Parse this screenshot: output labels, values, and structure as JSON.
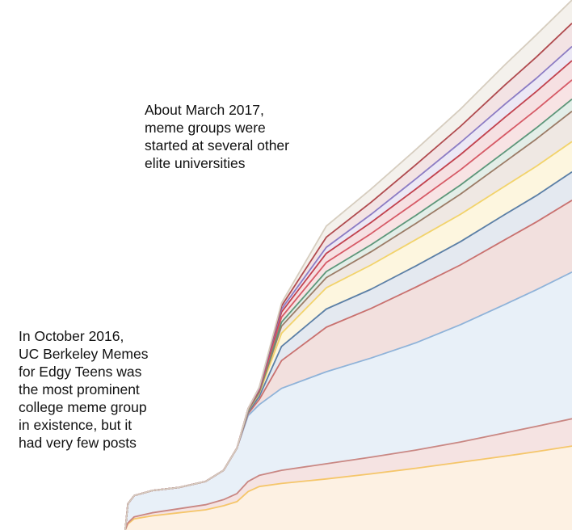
{
  "chart_data": {
    "type": "area",
    "stacked": true,
    "title": "",
    "xlabel": "",
    "ylabel": "",
    "axes_visible": false,
    "grid": false,
    "legend": "none",
    "x": [
      0,
      0.006,
      0.02,
      0.06,
      0.12,
      0.18,
      0.22,
      0.25,
      0.275,
      0.3,
      0.35,
      0.45,
      0.55,
      0.65,
      0.75,
      0.85,
      0.92,
      1.0
    ],
    "series": [
      {
        "color": "#f5c66a",
        "fill": "#fdf1e3",
        "values": [
          0,
          12,
          22,
          28,
          34,
          40,
          48,
          56,
          76,
          86,
          92,
          101,
          111,
          122,
          134,
          146,
          155,
          166
        ]
      },
      {
        "color": "#c98783",
        "fill": "#f5e3e2",
        "values": [
          0,
          2,
          4,
          6,
          8,
          10,
          12,
          16,
          20,
          22,
          26,
          30,
          33,
          36,
          40,
          46,
          50,
          54
        ]
      },
      {
        "color": "#8fb3d9",
        "fill": "#e8f0f8",
        "values": [
          0,
          38,
          42,
          44,
          42,
          46,
          58,
          90,
          130,
          140,
          162,
          182,
          196,
          212,
          232,
          254,
          270,
          290
        ]
      },
      {
        "color": "#c9716f",
        "fill": "#f2e0de",
        "values": [
          0,
          0,
          0,
          0,
          0,
          0,
          0,
          0,
          4,
          10,
          55,
          88,
          98,
          110,
          118,
          128,
          134,
          142
        ]
      },
      {
        "color": "#5b7fa6",
        "fill": "#e4e9f0",
        "values": [
          0,
          0,
          0,
          0,
          0,
          0,
          0,
          0,
          3,
          6,
          28,
          36,
          38,
          42,
          46,
          50,
          52,
          56
        ]
      },
      {
        "color": "#f2d36b",
        "fill": "#fdf6df",
        "values": [
          0,
          0,
          0,
          0,
          0,
          0,
          0,
          0,
          3,
          6,
          26,
          42,
          48,
          52,
          54,
          56,
          58,
          60
        ]
      },
      {
        "color": "#9b7b66",
        "fill": "#efe8e3",
        "values": [
          0,
          0,
          0,
          0,
          0,
          0,
          0,
          0,
          1,
          2,
          14,
          20,
          26,
          32,
          40,
          48,
          54,
          60
        ]
      },
      {
        "color": "#5d977a",
        "fill": "#e3eee8",
        "values": [
          0,
          0,
          0,
          0,
          0,
          0,
          0,
          0,
          1,
          2,
          8,
          12,
          14,
          16,
          18,
          20,
          22,
          24
        ]
      },
      {
        "color": "#d65a66",
        "fill": "#f8e3e4",
        "values": [
          0,
          0,
          0,
          0,
          0,
          0,
          0,
          0,
          1,
          2,
          10,
          18,
          22,
          26,
          30,
          34,
          36,
          38
        ]
      },
      {
        "color": "#c2424e",
        "fill": "#f6e0e2",
        "values": [
          0,
          0,
          0,
          0,
          0,
          0,
          0,
          0,
          1,
          2,
          10,
          18,
          22,
          26,
          30,
          34,
          36,
          38
        ]
      },
      {
        "color": "#8c7cc4",
        "fill": "#ece8f5",
        "values": [
          0,
          0,
          0,
          0,
          0,
          0,
          0,
          0,
          0,
          2,
          6,
          12,
          16,
          20,
          24,
          26,
          26,
          28
        ]
      },
      {
        "color": "#b04a4e",
        "fill": "#f3e3e4",
        "values": [
          0,
          0,
          0,
          0,
          0,
          0,
          0,
          0,
          0,
          2,
          6,
          20,
          24,
          28,
          32,
          38,
          42,
          46
        ]
      },
      {
        "color": "#d6cdbf",
        "fill": "#f4f1ec",
        "values": [
          0,
          0,
          0,
          0,
          0,
          0,
          0,
          0,
          0,
          0,
          6,
          22,
          26,
          30,
          34,
          40,
          44,
          46
        ]
      }
    ],
    "annotations": [
      {
        "lines": [
          "In October 2016,",
          "UC Berkeley Memes",
          "for Edgy Teens was",
          "the most prominent",
          "college meme group",
          "in existence, but it",
          "had very few posts"
        ]
      },
      {
        "lines": [
          "About March 2017,",
          "meme groups were",
          "started at several other",
          "elite universities"
        ]
      }
    ]
  }
}
